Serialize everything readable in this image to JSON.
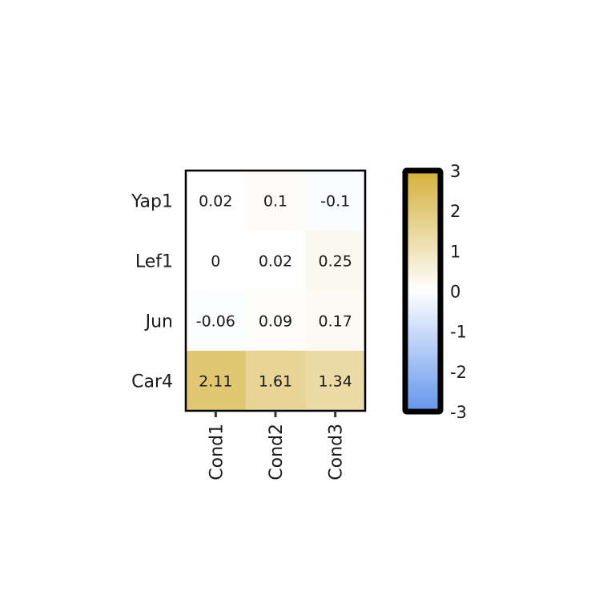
{
  "chart_data": {
    "type": "heatmap",
    "title": "",
    "xlabel": "",
    "ylabel": "",
    "rows": [
      "Yap1",
      "Lef1",
      "Jun",
      "Car4"
    ],
    "columns": [
      "Cond1",
      "Cond2",
      "Cond3"
    ],
    "values": [
      [
        0.02,
        0.1,
        -0.1
      ],
      [
        0,
        0.02,
        0.25
      ],
      [
        -0.06,
        0.09,
        0.17
      ],
      [
        2.11,
        1.61,
        1.34
      ]
    ],
    "cell_labels": [
      [
        "0.02",
        "0.1",
        "-0.1"
      ],
      [
        "0",
        "0.02",
        "0.25"
      ],
      [
        "-0.06",
        "0.09",
        "0.17"
      ],
      [
        "2.11",
        "1.61",
        "1.34"
      ]
    ],
    "colorbar": {
      "range": [
        -3,
        3
      ],
      "ticks": [
        "3",
        "2",
        "1",
        "0",
        "-1",
        "-2",
        "-3"
      ],
      "colors": {
        "low": "#6495ed",
        "mid": "#ffffff",
        "high": "#d4af37"
      }
    }
  }
}
